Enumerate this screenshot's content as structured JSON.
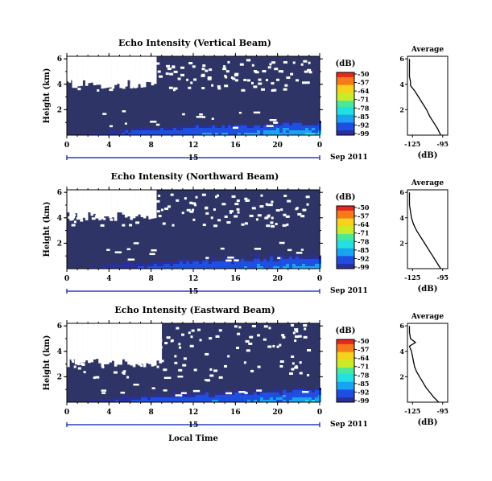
{
  "figure": {
    "xlabel": "Local Time",
    "date_label": "Sep 2011",
    "day_label": "15",
    "colorbar_unit": "(dB)",
    "average_title": "Average",
    "average_xlabel": "(dB)"
  },
  "colors": {
    "background_field": "#2e3566",
    "no_data": "#ffffff",
    "colormap": [
      "#2a2f9c",
      "#1e4fe0",
      "#1aa3f0",
      "#22e0e0",
      "#4be89a",
      "#c8ec2a",
      "#f6d21c",
      "#f57a1a",
      "#e8261c"
    ]
  },
  "chart_data": [
    {
      "type": "heatmap",
      "title": "Echo Intensity (Vertical Beam)",
      "xlabel": "Local Time",
      "ylabel": "Height (km)",
      "x_ticks": [
        "0",
        "4",
        "8",
        "12",
        "16",
        "20",
        "0"
      ],
      "y_ticks": [
        "6",
        "4",
        "2"
      ],
      "xlim": [
        0,
        24
      ],
      "ylim": [
        0,
        6.2
      ],
      "colorbar": {
        "label": "(dB)",
        "ticks": [
          "-50",
          "-57",
          "-64",
          "-71",
          "-78",
          "-85",
          "-92",
          "-99"
        ],
        "range": [
          -99,
          -50
        ]
      },
      "data_gap": {
        "x_start": 0,
        "x_end": 8.5,
        "height_base": 4.0
      },
      "scatter_gap_band": [
        3.5,
        6.0
      ],
      "near_ground_max_dB": -80,
      "average": {
        "title": "Average",
        "xlabel": "(dB)",
        "x_ticks": [
          "-125",
          "-95"
        ],
        "y_ticks": [
          "6",
          "4",
          "2"
        ],
        "xlim": [
          -130,
          -90
        ],
        "height": [
          0.0,
          0.5,
          1.0,
          1.5,
          2.0,
          2.5,
          3.0,
          3.5,
          3.9,
          4.2,
          4.6,
          5.0,
          5.5,
          6.0
        ],
        "value": [
          -97,
          -100,
          -104,
          -108,
          -111,
          -115,
          -119,
          -123,
          -127,
          -127,
          -128,
          -128,
          -128,
          -128
        ]
      }
    },
    {
      "type": "heatmap",
      "title": "Echo Intensity (Northward Beam)",
      "xlabel": "Local Time",
      "ylabel": "Height (km)",
      "x_ticks": [
        "0",
        "4",
        "8",
        "12",
        "16",
        "20",
        "0"
      ],
      "y_ticks": [
        "6",
        "4",
        "2"
      ],
      "xlim": [
        0,
        24
      ],
      "ylim": [
        0,
        6.2
      ],
      "colorbar": {
        "label": "(dB)",
        "ticks": [
          "-50",
          "-57",
          "-64",
          "-71",
          "-78",
          "-85",
          "-92",
          "-99"
        ],
        "range": [
          -99,
          -50
        ]
      },
      "data_gap": {
        "x_start": 0,
        "x_end": 8.3,
        "height_base": 4.1
      },
      "scatter_gap_band": [
        3.4,
        6.0
      ],
      "near_ground_max_dB": -84,
      "average": {
        "title": "Average",
        "xlabel": "(dB)",
        "x_ticks": [
          "-125",
          "-95"
        ],
        "y_ticks": [
          "6",
          "4",
          "2"
        ],
        "xlim": [
          -130,
          -90
        ],
        "height": [
          0.0,
          0.5,
          1.0,
          1.5,
          2.0,
          2.5,
          3.0,
          3.5,
          4.0,
          4.5,
          5.0,
          5.5,
          6.0
        ],
        "value": [
          -97,
          -101,
          -105,
          -109,
          -113,
          -117,
          -121,
          -124,
          -126,
          -127,
          -128,
          -128,
          -128
        ]
      }
    },
    {
      "type": "heatmap",
      "title": "Echo Intensity (Eastward Beam)",
      "xlabel": "Local Time",
      "ylabel": "Height (km)",
      "x_ticks": [
        "0",
        "4",
        "8",
        "12",
        "16",
        "20",
        "0"
      ],
      "y_ticks": [
        "6",
        "4",
        "2"
      ],
      "xlim": [
        0,
        24
      ],
      "ylim": [
        0,
        6.2
      ],
      "colorbar": {
        "label": "(dB)",
        "ticks": [
          "-50",
          "-57",
          "-64",
          "-71",
          "-78",
          "-85",
          "-92",
          "-99"
        ],
        "range": [
          -99,
          -50
        ]
      },
      "data_gap": {
        "x_start": 0,
        "x_end": 8.8,
        "height_base": 3.1
      },
      "scatter_gap_band": [
        2.0,
        6.2
      ],
      "near_ground_max_dB": -82,
      "average": {
        "title": "Average",
        "xlabel": "(dB)",
        "x_ticks": [
          "-125",
          "-95"
        ],
        "y_ticks": [
          "6",
          "4",
          "2"
        ],
        "xlim": [
          -130,
          -90
        ],
        "height": [
          0.0,
          0.4,
          0.8,
          1.2,
          1.6,
          2.0,
          2.4,
          2.8,
          3.2,
          3.6,
          4.0,
          4.4,
          4.7,
          5.0,
          5.5,
          6.0
        ],
        "value": [
          -99,
          -104,
          -108,
          -112,
          -115,
          -118,
          -121,
          -123,
          -124,
          -125,
          -126,
          -128,
          -122,
          -127,
          -128,
          -128
        ]
      }
    }
  ]
}
